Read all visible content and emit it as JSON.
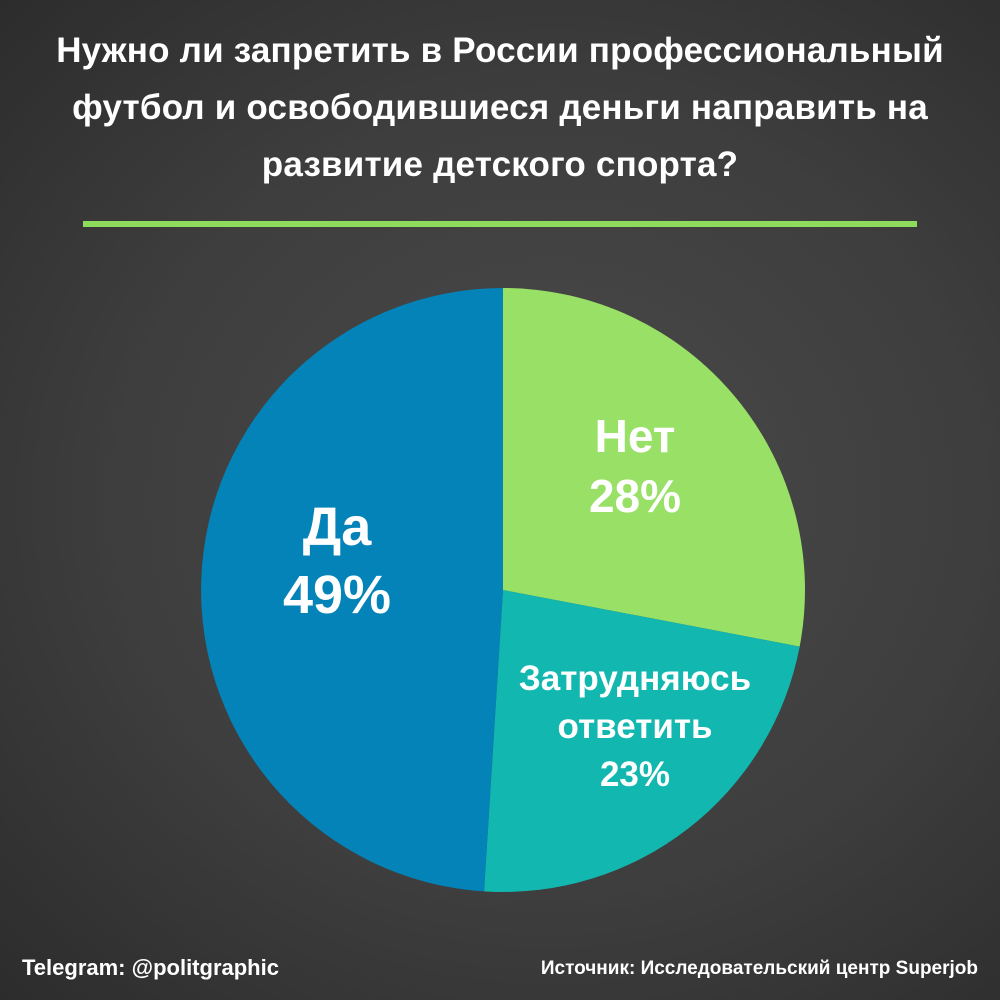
{
  "title": "Нужно ли запретить в России профессиональный футбол и освободившиеся деньги направить на развитие детского спорта?",
  "footer": {
    "telegram": "Telegram: @politgraphic",
    "source": "Источник: Исследовательский центр Superjob"
  },
  "colors": {
    "accent_line": "#8fdc5c"
  },
  "chart_data": {
    "type": "pie",
    "title": "Нужно ли запретить в России профессиональный футбол и освободившиеся деньги направить на развитие детского спорта?",
    "slices": [
      {
        "name": "Нет",
        "label_lines": [
          "Нет"
        ],
        "value": 28,
        "display": "28%",
        "color": "#99e066"
      },
      {
        "name": "Затрудняюсь ответить",
        "label_lines": [
          "Затрудняюсь",
          "ответить"
        ],
        "value": 23,
        "display": "23%",
        "color": "#12b8b0"
      },
      {
        "name": "Да",
        "label_lines": [
          "Да"
        ],
        "value": 49,
        "display": "49%",
        "color": "#0383b8"
      }
    ]
  }
}
